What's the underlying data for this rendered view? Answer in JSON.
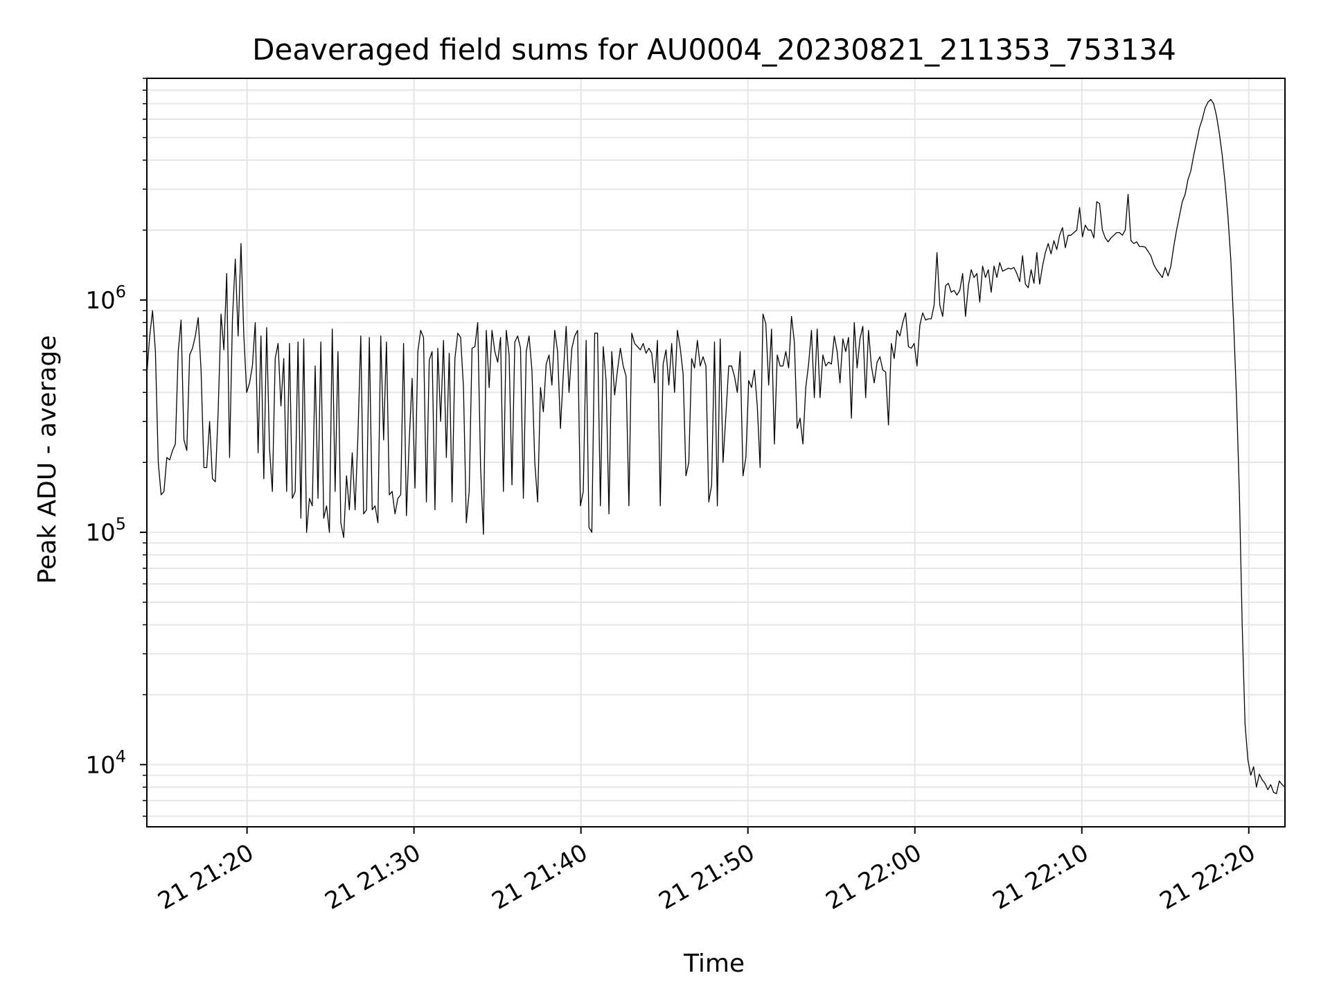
{
  "chart_data": {
    "type": "line",
    "title": "Deaveraged field sums for AU0004_20230821_211353_753134",
    "xlabel": "Time",
    "ylabel": "Peak ADU - average",
    "yscale": "log",
    "grid": true,
    "line_color": "#000000",
    "grid_color": "#e6e6e6",
    "xlim": [
      "2023-08-21 21:14:00",
      "2023-08-21 22:22:10"
    ],
    "ylim": [
      5400,
      9000000
    ],
    "x_ticks": [
      {
        "t": "2023-08-21 21:20:00",
        "label": "21 21:20"
      },
      {
        "t": "2023-08-21 21:30:00",
        "label": "21 21:30"
      },
      {
        "t": "2023-08-21 21:40:00",
        "label": "21 21:40"
      },
      {
        "t": "2023-08-21 21:50:00",
        "label": "21 21:50"
      },
      {
        "t": "2023-08-21 22:00:00",
        "label": "21 22:00"
      },
      {
        "t": "2023-08-21 22:10:00",
        "label": "21 22:10"
      },
      {
        "t": "2023-08-21 22:20:00",
        "label": "21 22:20"
      }
    ],
    "y_ticks": [
      {
        "value": 10000,
        "base": "10",
        "exp": "4"
      },
      {
        "value": 100000,
        "base": "10",
        "exp": "5"
      },
      {
        "value": 1000000,
        "base": "10",
        "exp": "6"
      }
    ],
    "series": [
      {
        "x_start": "2023-08-21 21:14:00",
        "x_end": "2023-08-21 22:22:10",
        "y": [
          480000,
          700000,
          900000,
          600000,
          200000,
          145000,
          150000,
          210000,
          205000,
          225000,
          240000,
          600000,
          820000,
          250000,
          225000,
          580000,
          620000,
          700000,
          840000,
          500000,
          190000,
          190000,
          300000,
          170000,
          165000,
          330000,
          870000,
          610000,
          1300000,
          210000,
          820000,
          1500000,
          700000,
          1750000,
          700000,
          400000,
          440000,
          520000,
          800000,
          220000,
          700000,
          170000,
          760000,
          230000,
          150000,
          560000,
          650000,
          350000,
          560000,
          150000,
          650000,
          140000,
          150000,
          660000,
          115000,
          680000,
          100000,
          140000,
          130000,
          520000,
          140000,
          660000,
          115000,
          130000,
          100000,
          750000,
          150000,
          600000,
          110000,
          95000,
          175000,
          125000,
          220000,
          125000,
          260000,
          700000,
          120000,
          125000,
          690000,
          125000,
          130000,
          110000,
          700000,
          250000,
          660000,
          145000,
          150000,
          120000,
          140000,
          145000,
          650000,
          118000,
          250000,
          460000,
          155000,
          600000,
          740000,
          690000,
          135000,
          550000,
          600000,
          125000,
          620000,
          300000,
          670000,
          210000,
          590000,
          135000,
          560000,
          720000,
          690000,
          420000,
          110000,
          150000,
          620000,
          630000,
          800000,
          190000,
          98000,
          740000,
          420000,
          740000,
          600000,
          540000,
          690000,
          150000,
          740000,
          580000,
          160000,
          660000,
          700000,
          620000,
          140000,
          600000,
          700000,
          500000,
          200000,
          135000,
          420000,
          330000,
          530000,
          580000,
          430000,
          740000,
          600000,
          280000,
          480000,
          770000,
          400000,
          620000,
          700000,
          740000,
          130000,
          150000,
          670000,
          105000,
          100000,
          720000,
          720000,
          130000,
          630000,
          450000,
          120000,
          600000,
          390000,
          500000,
          620000,
          520000,
          470000,
          130000,
          720000,
          650000,
          630000,
          610000,
          650000,
          590000,
          620000,
          590000,
          440000,
          670000,
          130000,
          530000,
          610000,
          430000,
          650000,
          400000,
          740000,
          620000,
          480000,
          175000,
          200000,
          560000,
          510000,
          670000,
          520000,
          570000,
          520000,
          135000,
          160000,
          660000,
          130000,
          680000,
          200000,
          320000,
          520000,
          520000,
          470000,
          400000,
          600000,
          175000,
          210000,
          450000,
          420000,
          500000,
          350000,
          190000,
          870000,
          790000,
          430000,
          750000,
          240000,
          580000,
          520000,
          520000,
          600000,
          510000,
          850000,
          660000,
          280000,
          310000,
          240000,
          420000,
          530000,
          740000,
          380000,
          750000,
          380000,
          580000,
          520000,
          540000,
          530000,
          700000,
          600000,
          440000,
          680000,
          600000,
          690000,
          310000,
          800000,
          510000,
          680000,
          770000,
          380000,
          740000,
          520000,
          440000,
          540000,
          570000,
          500000,
          490000,
          290000,
          650000,
          560000,
          740000,
          700000,
          800000,
          880000,
          630000,
          620000,
          650000,
          520000,
          780000,
          880000,
          820000,
          830000,
          830000,
          950000,
          1600000,
          950000,
          850000,
          1150000,
          1180000,
          1080000,
          1100000,
          1050000,
          1100000,
          1300000,
          850000,
          1150000,
          1350000,
          1250000,
          1300000,
          980000,
          1400000,
          1250000,
          1350000,
          1080000,
          1400000,
          1250000,
          1450000,
          1330000,
          1350000,
          1370000,
          1360000,
          1380000,
          1300000,
          1200000,
          1550000,
          1170000,
          1130000,
          1350000,
          1180000,
          1600000,
          1170000,
          1400000,
          1600000,
          1750000,
          1580000,
          1800000,
          1650000,
          1900000,
          2050000,
          1680000,
          1900000,
          1900000,
          1950000,
          2000000,
          2500000,
          1870000,
          2100000,
          2000000,
          2000000,
          1850000,
          2650000,
          2600000,
          2000000,
          1850000,
          1780000,
          1850000,
          1900000,
          1950000,
          1950000,
          1900000,
          2000000,
          2850000,
          1800000,
          1750000,
          1780000,
          1700000,
          1700000,
          1690000,
          1620000,
          1550000,
          1420000,
          1350000,
          1300000,
          1250000,
          1380000,
          1270000,
          1400000,
          1700000,
          2000000,
          2300000,
          2650000,
          2850000,
          3300000,
          3600000,
          4200000,
          4800000,
          5500000,
          6000000,
          6700000,
          7100000,
          7300000,
          7000000,
          6200000,
          5200000,
          4200000,
          3200000,
          2300000,
          1500000,
          800000,
          380000,
          150000,
          40000,
          15000,
          10500,
          9000,
          9800,
          8000,
          9100,
          8600,
          8300,
          7800,
          8200,
          7600,
          7500,
          8500,
          8200,
          8000
        ]
      }
    ]
  }
}
